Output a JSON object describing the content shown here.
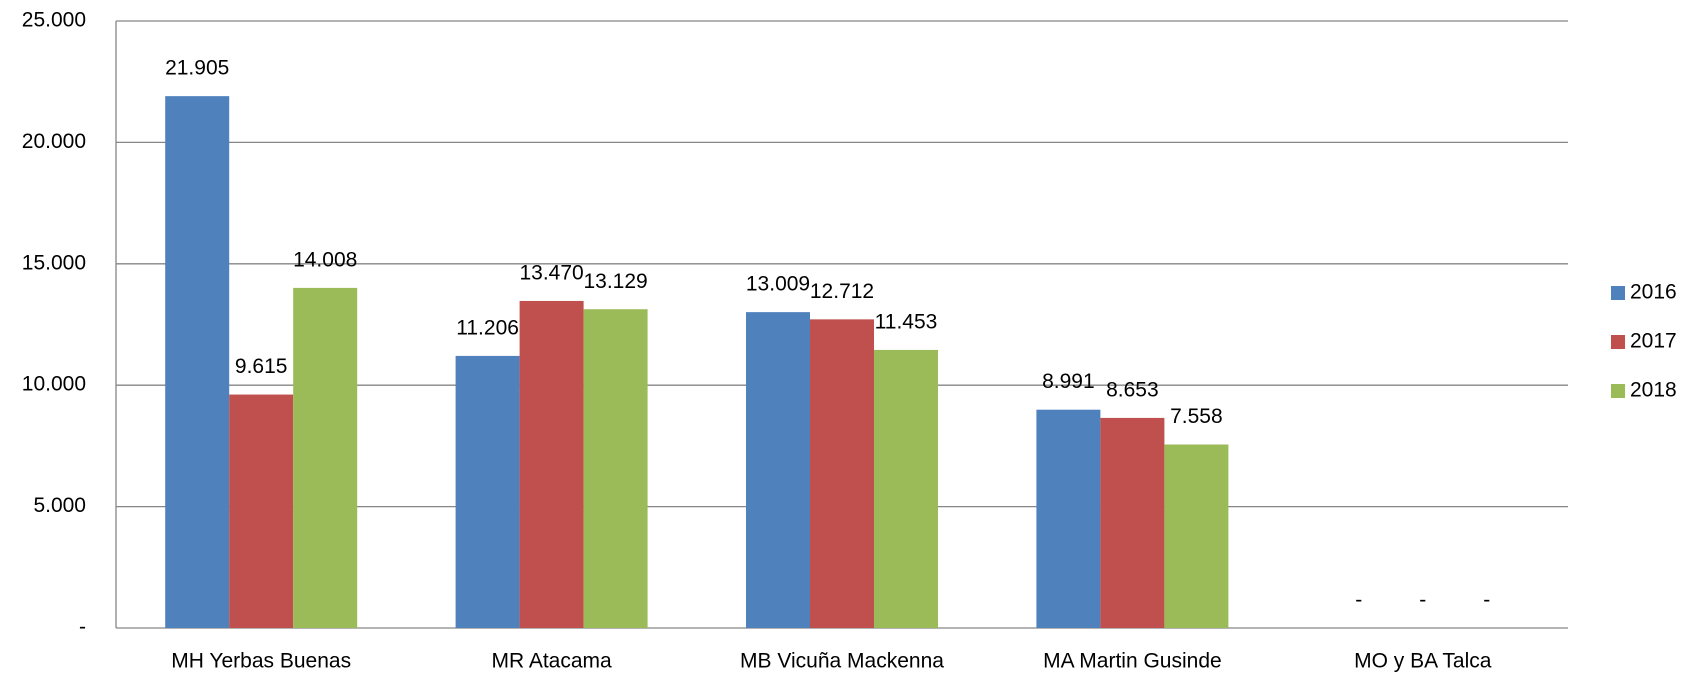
{
  "chart_data": {
    "type": "bar",
    "categories": [
      "MH Yerbas Buenas",
      "MR Atacama",
      "MB Vicuña Mackenna",
      "MA Martin Gusinde",
      "MO y BA Talca"
    ],
    "series": [
      {
        "name": "2016",
        "color": "#4f81bd",
        "values": [
          21905,
          11206,
          13009,
          8991,
          0
        ],
        "value_labels": [
          "21.905",
          "11.206",
          "13.009",
          "8.991",
          "-"
        ]
      },
      {
        "name": "2017",
        "color": "#c0504d",
        "values": [
          9615,
          13470,
          12712,
          8653,
          0
        ],
        "value_labels": [
          "9.615",
          "13.470",
          "12.712",
          "8.653",
          "-"
        ]
      },
      {
        "name": "2018",
        "color": "#9bbb59",
        "values": [
          14008,
          13129,
          11453,
          7558,
          0
        ],
        "value_labels": [
          "14.008",
          "13.129",
          "11.453",
          "7.558",
          "-"
        ]
      }
    ],
    "ylim": [
      0,
      25000
    ],
    "yticks": [
      {
        "value": 0,
        "label": "-"
      },
      {
        "value": 5000,
        "label": "5.000"
      },
      {
        "value": 10000,
        "label": "10.000"
      },
      {
        "value": 15000,
        "label": "15.000"
      },
      {
        "value": 20000,
        "label": "20.000"
      },
      {
        "value": 25000,
        "label": "25.000"
      }
    ],
    "grid": true,
    "legend": "right"
  }
}
